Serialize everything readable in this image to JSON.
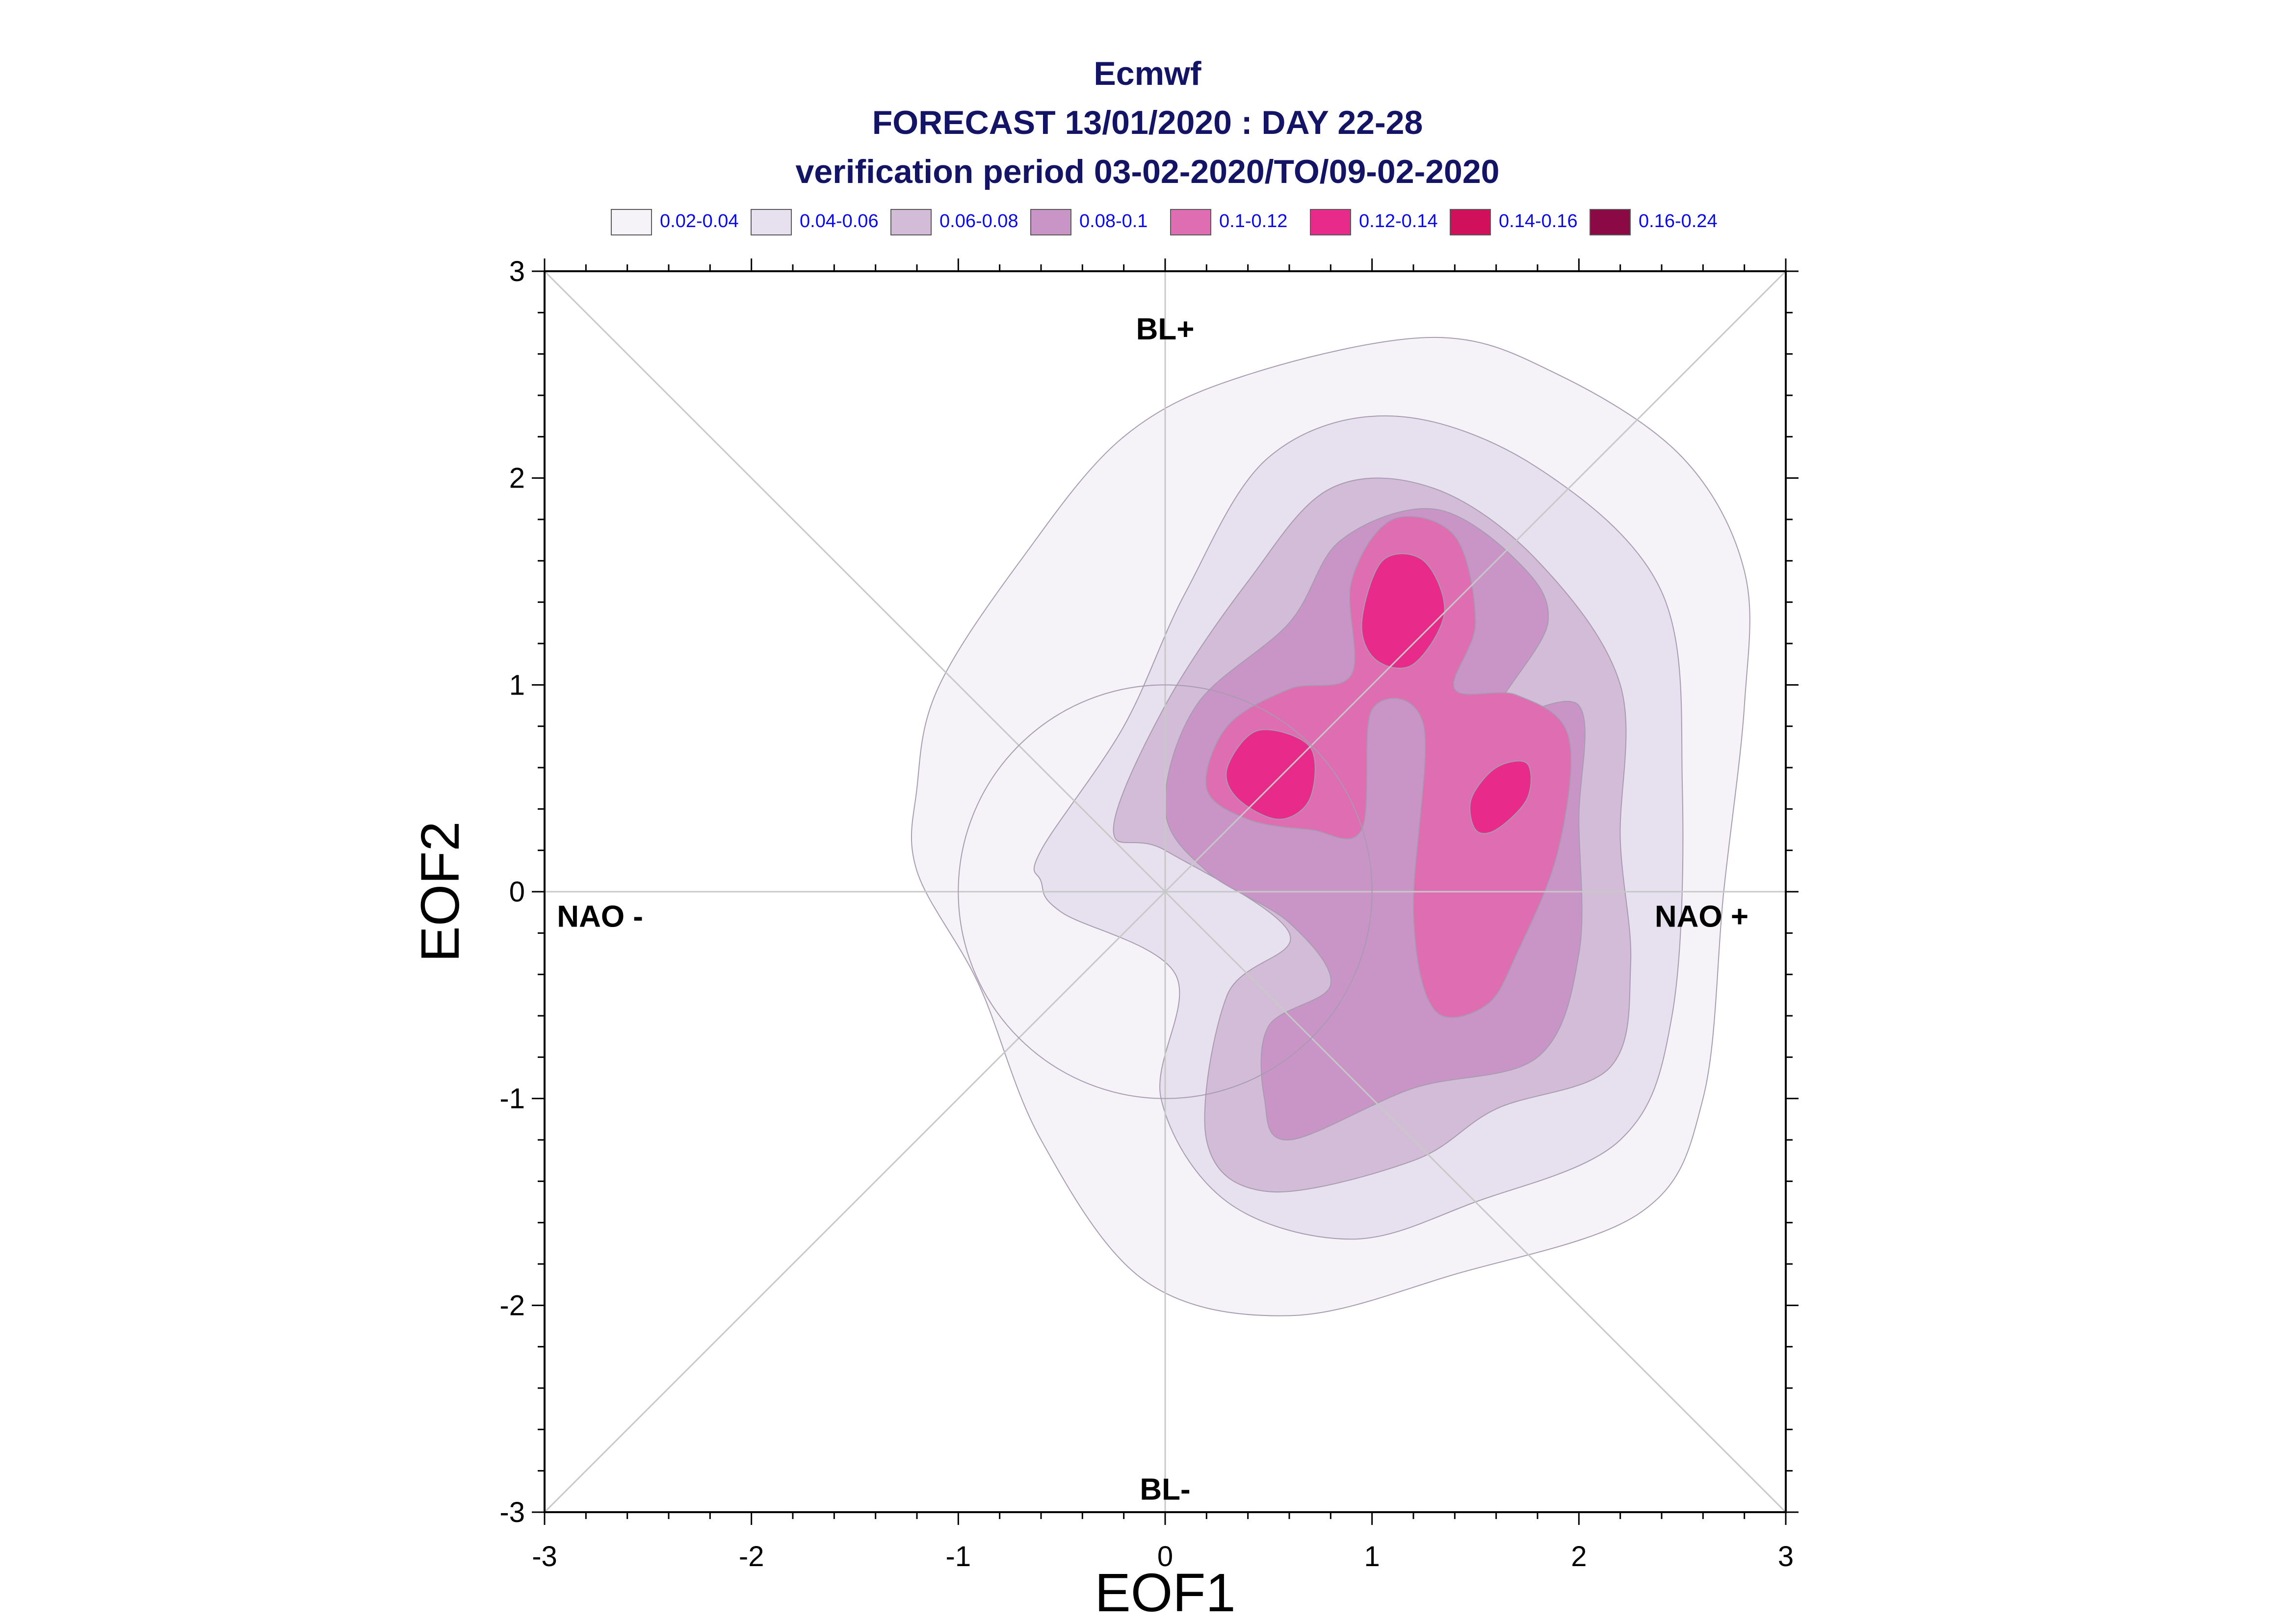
{
  "title": {
    "line1": "Ecmwf",
    "line2": "FORECAST 13/01/2020 : DAY 22-28",
    "line3": "verification period 03-02-2020/TO/09-02-2020"
  },
  "legend": [
    {
      "label": "0.02-0.04",
      "color": "#f5f3f8"
    },
    {
      "label": "0.04-0.06",
      "color": "#e7e0ee"
    },
    {
      "label": "0.06-0.08",
      "color": "#d3bcd8"
    },
    {
      "label": "0.08-0.1",
      "color": "#c995c7"
    },
    {
      "label": "0.1-0.12",
      "color": "#df6db2"
    },
    {
      "label": "0.12-0.14",
      "color": "#e82b8a"
    },
    {
      "label": "0.14-0.16",
      "color": "#d0105a"
    },
    {
      "label": "0.16-0.24",
      "color": "#8b0a45"
    }
  ],
  "chart_data": {
    "type": "contour",
    "xlabel": "EOF1",
    "ylabel": "EOF2",
    "xlim": [
      -3,
      3
    ],
    "ylim": [
      -3,
      3
    ],
    "xticks": [
      -3,
      -2,
      -1,
      0,
      1,
      2,
      3
    ],
    "yticks": [
      -3,
      -2,
      -1,
      0,
      1,
      2,
      3
    ],
    "quadrant_labels": {
      "top": "BL+",
      "bottom": "BL-",
      "left": "NAO -",
      "right": "NAO +"
    },
    "reference_circle": {
      "center": [
        0,
        0
      ],
      "radius": 1
    },
    "density_levels": [
      {
        "range": "0.02-0.04",
        "color": "#f5f3f8",
        "polygon": [
          [
            -1.2,
            0.5
          ],
          [
            -1.1,
            0.98
          ],
          [
            -0.7,
            1.6
          ],
          [
            -0.2,
            2.2
          ],
          [
            0.4,
            2.5
          ],
          [
            1.3,
            2.68
          ],
          [
            1.9,
            2.5
          ],
          [
            2.5,
            2.1
          ],
          [
            2.8,
            1.55
          ],
          [
            2.8,
            0.9
          ],
          [
            2.7,
            0
          ],
          [
            2.6,
            -1.0
          ],
          [
            2.3,
            -1.55
          ],
          [
            1.4,
            -1.85
          ],
          [
            0.6,
            -2.05
          ],
          [
            -0.1,
            -1.88
          ],
          [
            -0.6,
            -1.2
          ],
          [
            -0.9,
            -0.45
          ],
          [
            -1.2,
            0.1
          ]
        ]
      },
      {
        "range": "0.04-0.06",
        "color": "#e7e0ee",
        "polygon": [
          [
            -0.6,
            0.2
          ],
          [
            -0.2,
            0.8
          ],
          [
            0.1,
            1.45
          ],
          [
            0.5,
            2.1
          ],
          [
            1.1,
            2.3
          ],
          [
            1.8,
            2.05
          ],
          [
            2.4,
            1.45
          ],
          [
            2.5,
            0.5
          ],
          [
            2.45,
            -0.6
          ],
          [
            2.2,
            -1.2
          ],
          [
            1.5,
            -1.5
          ],
          [
            0.9,
            -1.68
          ],
          [
            0.3,
            -1.5
          ],
          [
            -0.02,
            -1.0
          ],
          [
            0.05,
            -0.4
          ],
          [
            -0.5,
            -0.1
          ],
          [
            -0.6,
            0.05
          ]
        ]
      },
      {
        "range": "0.06-0.08",
        "color": "#d3bcd8",
        "polygon": [
          [
            -0.25,
            0.3
          ],
          [
            0,
            0.9
          ],
          [
            0.4,
            1.5
          ],
          [
            0.8,
            1.95
          ],
          [
            1.3,
            1.95
          ],
          [
            1.8,
            1.6
          ],
          [
            2.2,
            1.0
          ],
          [
            2.2,
            0.25
          ],
          [
            2.25,
            -0.35
          ],
          [
            2.15,
            -0.85
          ],
          [
            1.6,
            -1.05
          ],
          [
            1.2,
            -1.3
          ],
          [
            0.5,
            -1.45
          ],
          [
            0.2,
            -1.2
          ],
          [
            0.3,
            -0.5
          ],
          [
            0.6,
            -0.2
          ],
          [
            0,
            0.2
          ]
        ]
      },
      {
        "range": "0.08-0.1",
        "color": "#c995c7",
        "polygon": [
          [
            0,
            0.4
          ],
          [
            0.15,
            0.9
          ],
          [
            0.6,
            1.3
          ],
          [
            0.85,
            1.7
          ],
          [
            1.3,
            1.85
          ],
          [
            1.7,
            1.6
          ],
          [
            1.85,
            1.3
          ],
          [
            1.6,
            0.85
          ],
          [
            2.0,
            0.9
          ],
          [
            2.0,
            0.35
          ],
          [
            2.0,
            -0.3
          ],
          [
            1.8,
            -0.8
          ],
          [
            1.2,
            -0.95
          ],
          [
            0.6,
            -1.2
          ],
          [
            0.48,
            -1.0
          ],
          [
            0.5,
            -0.65
          ],
          [
            0.8,
            -0.45
          ],
          [
            0.6,
            -0.15
          ],
          [
            0.2,
            0.1
          ]
        ]
      },
      {
        "range": "0.1-0.12",
        "color": "#df6db2",
        "polygon": [
          [
            0.2,
            0.5
          ],
          [
            0.3,
            0.8
          ],
          [
            0.6,
            0.98
          ],
          [
            0.9,
            1.05
          ],
          [
            0.9,
            1.5
          ],
          [
            1.1,
            1.8
          ],
          [
            1.4,
            1.72
          ],
          [
            1.5,
            1.3
          ],
          [
            1.4,
            0.98
          ],
          [
            1.7,
            0.95
          ],
          [
            1.95,
            0.75
          ],
          [
            1.9,
            0.2
          ],
          [
            1.7,
            -0.3
          ],
          [
            1.55,
            -0.55
          ],
          [
            1.3,
            -0.57
          ],
          [
            1.2,
            -0.1
          ],
          [
            1.25,
            0.8
          ],
          [
            1.0,
            0.88
          ],
          [
            0.95,
            0.3
          ],
          [
            0.7,
            0.3
          ],
          [
            0.4,
            0.35
          ]
        ]
      },
      {
        "range": "0.12-0.14",
        "color": "#e82b8a",
        "polygon": [
          [
            0.3,
            0.6
          ],
          [
            0.45,
            0.78
          ],
          [
            0.7,
            0.7
          ],
          [
            0.7,
            0.45
          ],
          [
            0.55,
            0.35
          ],
          [
            0.35,
            0.45
          ]
        ]
      },
      {
        "range": "0.12-0.14",
        "color": "#e82b8a",
        "polygon": [
          [
            0.95,
            1.3
          ],
          [
            1.05,
            1.6
          ],
          [
            1.25,
            1.6
          ],
          [
            1.35,
            1.35
          ],
          [
            1.2,
            1.1
          ],
          [
            1.02,
            1.12
          ]
        ]
      },
      {
        "range": "0.12-0.14",
        "color": "#e82b8a",
        "polygon": [
          [
            1.48,
            0.45
          ],
          [
            1.6,
            0.6
          ],
          [
            1.75,
            0.62
          ],
          [
            1.75,
            0.45
          ],
          [
            1.6,
            0.3
          ],
          [
            1.5,
            0.3
          ]
        ]
      }
    ]
  }
}
